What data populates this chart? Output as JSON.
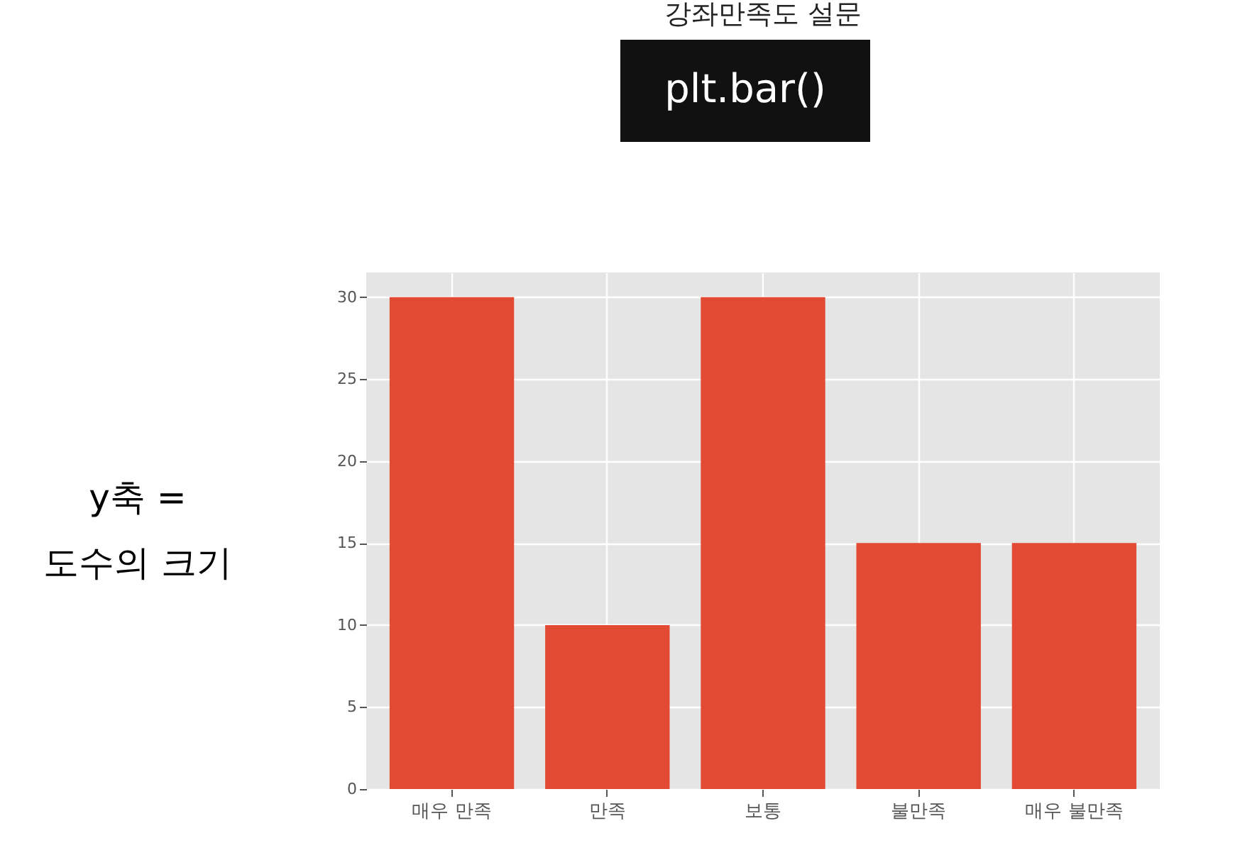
{
  "chart_data": {
    "type": "bar",
    "title": "강좌만족도 설문",
    "categories": [
      "매우 만족",
      "만족",
      "보통",
      "불만족",
      "매우 불만족"
    ],
    "values": [
      30,
      10,
      30,
      15,
      15
    ],
    "color": "#e24a33",
    "ylim": [
      0,
      31.5
    ],
    "yticks": [
      0,
      5,
      10,
      15,
      20,
      25,
      30
    ],
    "grid": true,
    "annotations": [
      "plt.bar()",
      "y축 =\n도수의 크기"
    ]
  }
}
